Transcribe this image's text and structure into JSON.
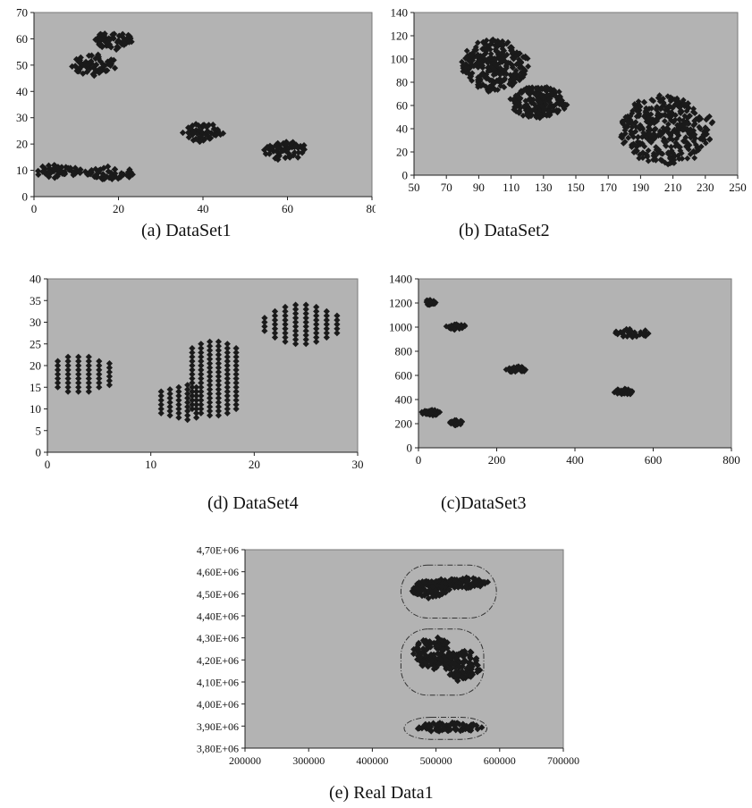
{
  "chart_data": [
    {
      "id": "ds1",
      "type": "scatter",
      "caption": "(a) DataSet1",
      "title": "",
      "xlabel": "",
      "ylabel": "",
      "xlim": [
        0,
        80
      ],
      "ylim": [
        0,
        70
      ],
      "xticks": [
        0,
        20,
        40,
        60,
        80
      ],
      "yticks": [
        0,
        10,
        20,
        30,
        40,
        50,
        60,
        70
      ],
      "grid": false,
      "legend": "none",
      "plot_bg": "#b3b3b3",
      "marker_color": "#1a1a1a",
      "clusters": [
        {
          "cx": 6,
          "cy": 9.5,
          "rx": 6,
          "ry": 2.5
        },
        {
          "cx": 18,
          "cy": 9,
          "rx": 5.5,
          "ry": 2.5
        },
        {
          "cx": 14,
          "cy": 50,
          "rx": 5,
          "ry": 4
        },
        {
          "cx": 19,
          "cy": 59.5,
          "rx": 4.5,
          "ry": 3.5
        },
        {
          "cx": 40,
          "cy": 24.5,
          "rx": 4.5,
          "ry": 3.5
        },
        {
          "cx": 59.5,
          "cy": 17.5,
          "rx": 5,
          "ry": 3.5
        }
      ]
    },
    {
      "id": "ds2",
      "type": "scatter",
      "caption": "(b) DataSet2",
      "title": "",
      "xlabel": "",
      "ylabel": "",
      "xlim": [
        50,
        250
      ],
      "ylim": [
        0,
        140
      ],
      "xticks": [
        50,
        70,
        90,
        110,
        130,
        150,
        170,
        190,
        210,
        230,
        250
      ],
      "yticks": [
        0,
        20,
        40,
        60,
        80,
        100,
        120,
        140
      ],
      "grid": false,
      "legend": "none",
      "plot_bg": "#b3b3b3",
      "marker_color": "#1a1a1a",
      "clusters": [
        {
          "cx": 100,
          "cy": 95,
          "rx": 20,
          "ry": 22
        },
        {
          "cx": 127,
          "cy": 63,
          "rx": 17,
          "ry": 14
        },
        {
          "cx": 205,
          "cy": 38,
          "rx": 28,
          "ry": 29
        }
      ]
    },
    {
      "id": "ds4",
      "type": "scatter",
      "caption": "(d) DataSet4",
      "title": "",
      "xlabel": "",
      "ylabel": "",
      "xlim": [
        0,
        30
      ],
      "ylim": [
        0,
        40
      ],
      "xticks": [
        0,
        10,
        20,
        30
      ],
      "yticks": [
        0,
        5,
        10,
        15,
        20,
        25,
        30,
        35,
        40
      ],
      "grid": false,
      "legend": "none",
      "plot_bg": "#b3b3b3",
      "marker_color": "#1a1a1a",
      "grid_clusters": [
        {
          "x0": 1,
          "x1": 6,
          "dx": 1,
          "cy": 18,
          "half_heights": [
            3,
            4,
            4,
            4,
            3,
            2.5
          ]
        },
        {
          "x0": 11,
          "x1": 15,
          "dx": 0.85,
          "cy": 11.5,
          "half_heights": [
            2.5,
            3,
            3.5,
            4,
            3.5
          ]
        },
        {
          "x0": 14,
          "x1": 19,
          "dx": 0.85,
          "cy": 17,
          "half_heights": [
            7,
            8,
            8.5,
            8.5,
            8,
            7,
            5
          ]
        },
        {
          "x0": 21,
          "x1": 28,
          "dx": 1,
          "cy": 29.5,
          "half_heights": [
            1.5,
            3,
            4,
            4.5,
            4.5,
            4,
            3,
            2
          ]
        }
      ]
    },
    {
      "id": "ds3",
      "type": "scatter",
      "caption": "(c)DataSet3",
      "title": "",
      "xlabel": "",
      "ylabel": "",
      "xlim": [
        0,
        800
      ],
      "ylim": [
        0,
        1400
      ],
      "xticks": [
        0,
        200,
        400,
        600,
        800
      ],
      "yticks": [
        0,
        200,
        400,
        600,
        800,
        1000,
        1200,
        1400
      ],
      "grid": false,
      "legend": "none",
      "plot_bg": "#b3b3b3",
      "marker_color": "#1a1a1a",
      "clusters": [
        {
          "cx": 30,
          "cy": 1205,
          "rx": 14,
          "ry": 22
        },
        {
          "cx": 100,
          "cy": 1000,
          "rx": 28,
          "ry": 28
        },
        {
          "cx": 30,
          "cy": 290,
          "rx": 26,
          "ry": 24
        },
        {
          "cx": 95,
          "cy": 210,
          "rx": 18,
          "ry": 24
        },
        {
          "cx": 250,
          "cy": 648,
          "rx": 26,
          "ry": 28
        },
        {
          "cx": 545,
          "cy": 950,
          "rx": 48,
          "ry": 38
        },
        {
          "cx": 525,
          "cy": 465,
          "rx": 24,
          "ry": 28
        }
      ]
    },
    {
      "id": "real1",
      "type": "scatter",
      "caption": "(e) Real Data1",
      "title": "",
      "xlabel": "",
      "ylabel": "",
      "xlim": [
        200000,
        700000
      ],
      "ylim": [
        3800000,
        4700000
      ],
      "xticks": [
        200000,
        300000,
        400000,
        500000,
        600000,
        700000
      ],
      "xtick_labels": [
        "200000",
        "300000",
        "400000",
        "500000",
        "600000",
        "700000"
      ],
      "yticks": [
        3800000,
        3900000,
        4000000,
        4100000,
        4200000,
        4300000,
        4400000,
        4500000,
        4600000,
        4700000
      ],
      "ytick_labels": [
        "3,80E+06",
        "3,90E+06",
        "4,00E+06",
        "4,10E+06",
        "4,20E+06",
        "4,30E+06",
        "4,40E+06",
        "4,50E+06",
        "4,60E+06",
        "4,70E+06"
      ],
      "grid": false,
      "legend": "none",
      "plot_bg": "#b3b3b3",
      "marker_color": "#1a1a1a",
      "clusters": [
        {
          "cx": 490000,
          "cy": 4520000,
          "rx": 30000,
          "ry": 40000
        },
        {
          "cx": 540000,
          "cy": 4550000,
          "rx": 45000,
          "ry": 25000
        },
        {
          "cx": 495000,
          "cy": 4230000,
          "rx": 30000,
          "ry": 70000
        },
        {
          "cx": 540000,
          "cy": 4180000,
          "rx": 30000,
          "ry": 70000
        },
        {
          "cx": 520000,
          "cy": 3895000,
          "rx": 55000,
          "ry": 20000
        }
      ],
      "outlines": [
        {
          "cx": 520000,
          "cy": 4510000,
          "rx": 75000,
          "ry": 120000
        },
        {
          "cx": 510000,
          "cy": 4190000,
          "rx": 65000,
          "ry": 150000
        },
        {
          "cx": 515000,
          "cy": 3890000,
          "rx": 65000,
          "ry": 50000
        }
      ]
    }
  ]
}
